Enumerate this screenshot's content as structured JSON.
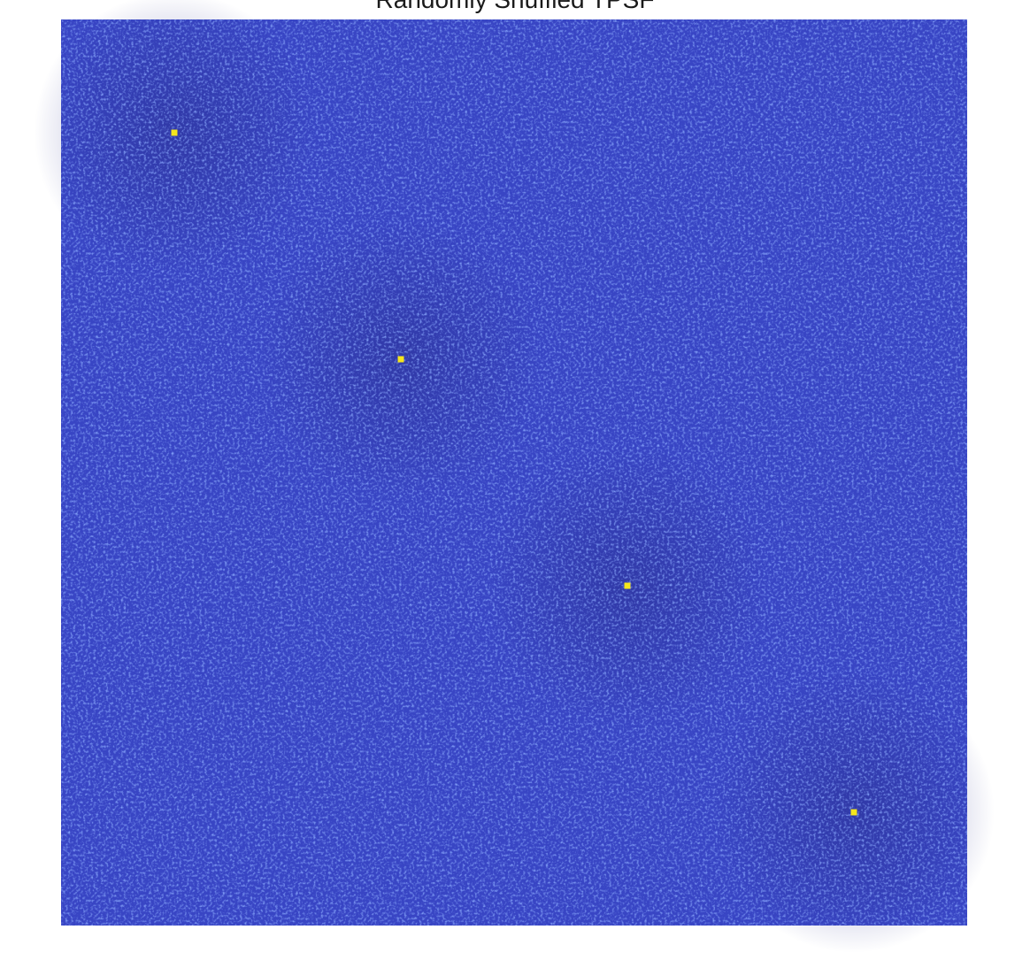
{
  "chart_data": {
    "type": "heatmap",
    "title": "Randomly Shuffled TPSF",
    "xlabel": "",
    "ylabel": "",
    "colormap": "parula",
    "colors": {
      "background_low": "#2f35a3",
      "background_mid": "#3845c4",
      "speckle_high": "#3c63f0",
      "peak": "#f5e61d"
    },
    "grid": false,
    "legend": "none",
    "grid_size": [
      4,
      4
    ],
    "peaks": [
      {
        "row": 0,
        "col": 0,
        "value": 1.0
      },
      {
        "row": 1,
        "col": 1,
        "value": 1.0
      },
      {
        "row": 2,
        "col": 2,
        "value": 1.0
      },
      {
        "row": 3,
        "col": 3,
        "value": 1.0
      }
    ],
    "background_level": 0.08
  }
}
